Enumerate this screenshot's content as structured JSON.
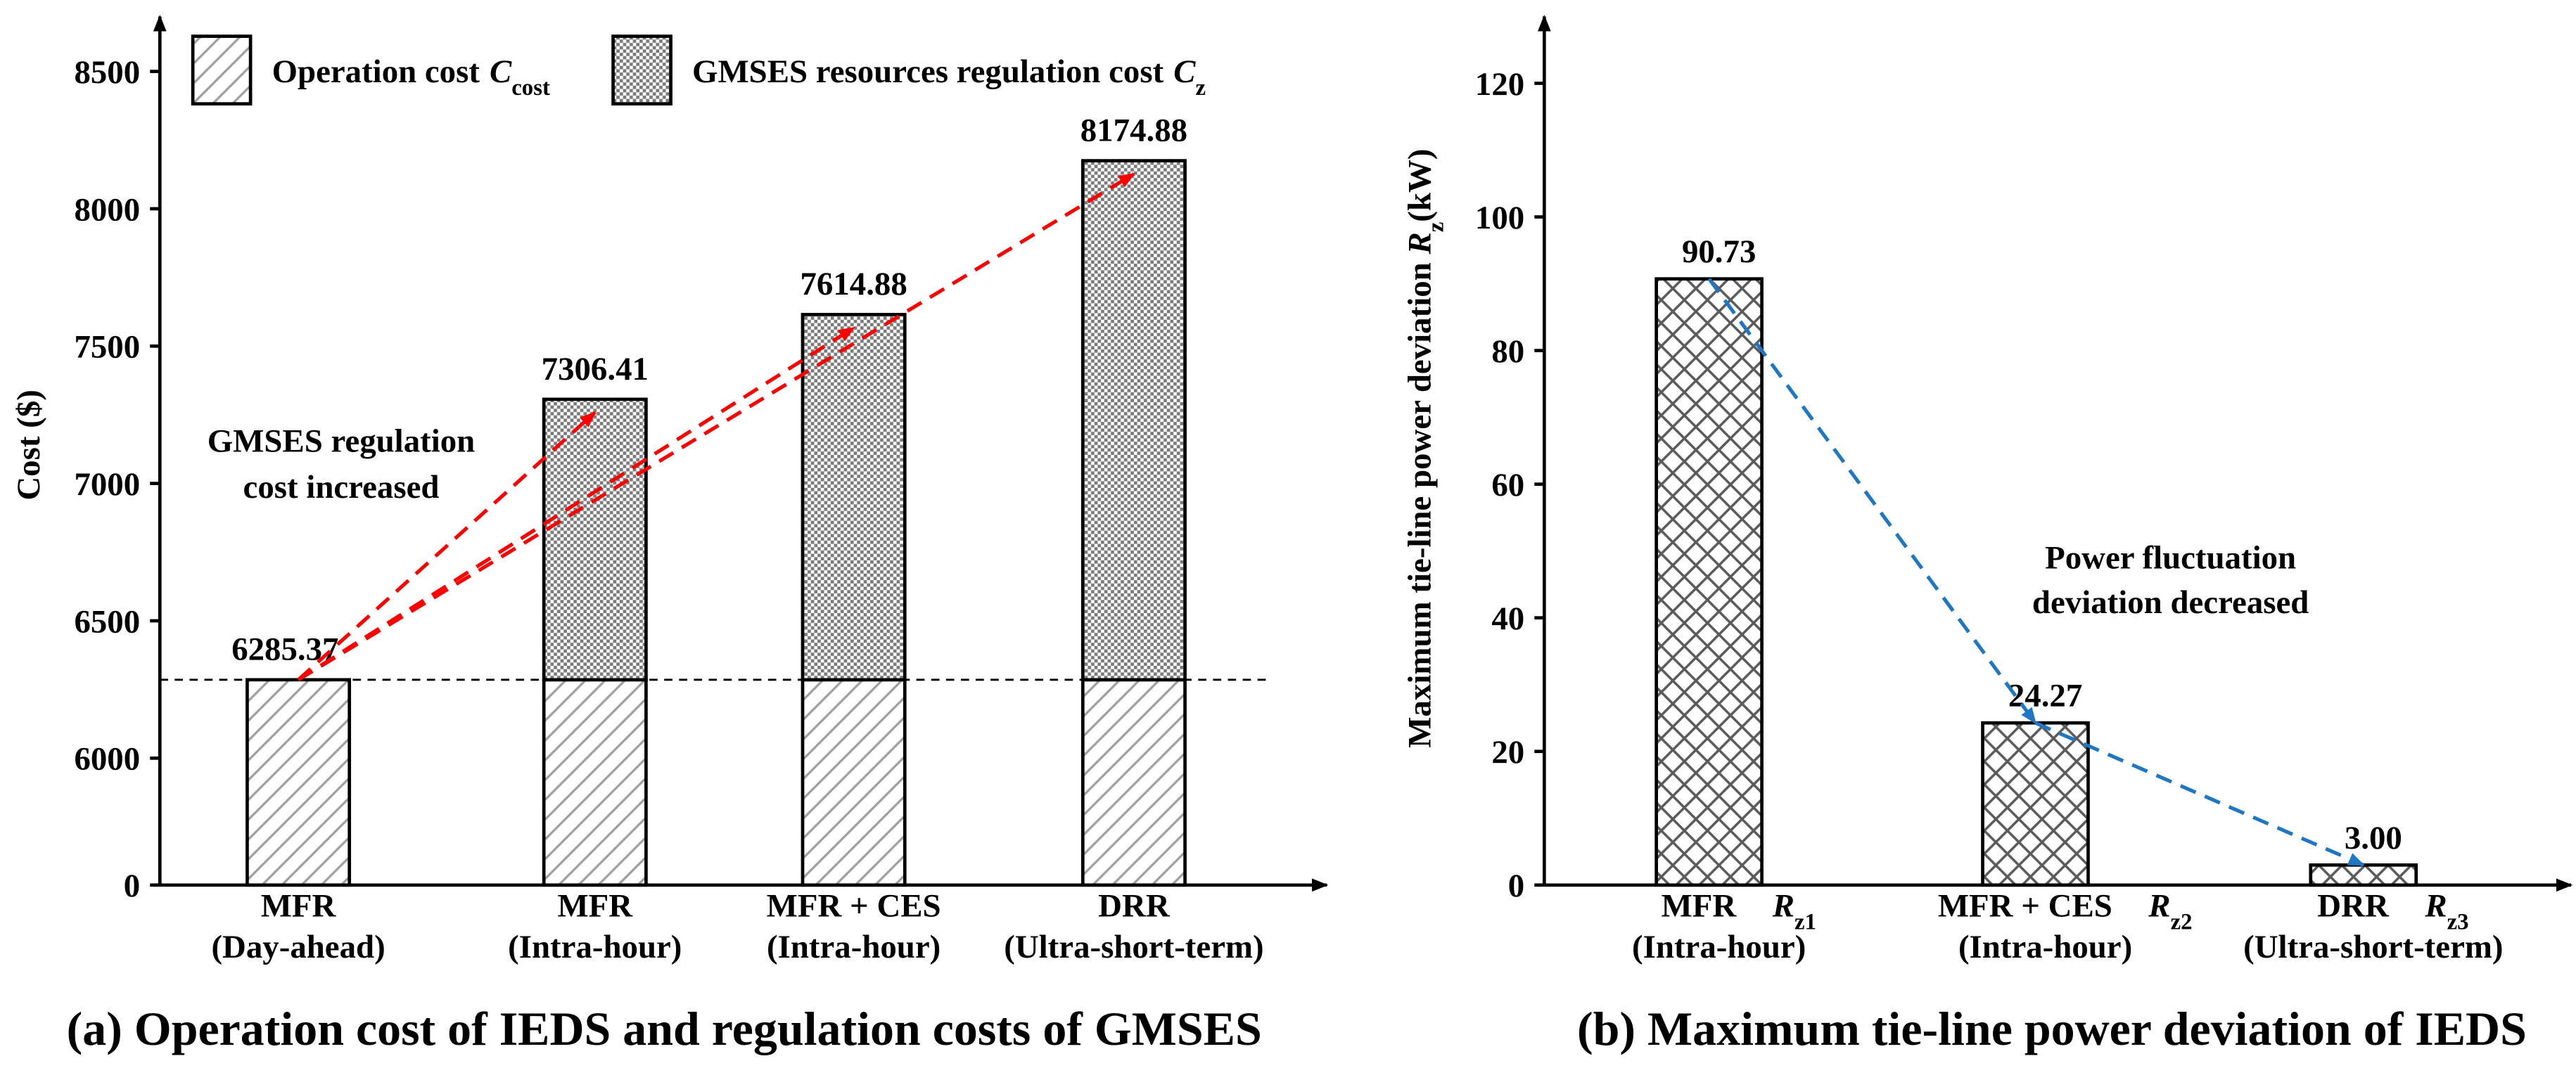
{
  "chart_data": [
    {
      "type": "stacked_bar",
      "title": "(a) Operation cost of IEDS and regulation costs of GMSES",
      "ylabel": "Cost ($)",
      "categories": [
        [
          "MFR",
          "(Day-ahead)"
        ],
        [
          "MFR",
          "(Intra-hour)"
        ],
        [
          "MFR + CES",
          "(Intra-hour)"
        ],
        [
          "DRR",
          "(Ultra-short-term)"
        ]
      ],
      "series": [
        {
          "name": "Operation cost",
          "symbol": "C",
          "subscript": "cost",
          "color": "#a0a0a0",
          "pattern": "hatch",
          "values": [
            6285.37,
            6285.37,
            6285.37,
            6285.37
          ]
        },
        {
          "name": "GMSES resources regulation cost",
          "symbol": "C",
          "subscript": "z",
          "color": "#7a7a7a",
          "pattern": "dots",
          "values": [
            null,
            1021.04,
            1329.51,
            1889.51
          ]
        }
      ],
      "totals": [
        6285.37,
        7306.41,
        7614.88,
        8174.88
      ],
      "ylim": [
        0,
        8700
      ],
      "yticks": [
        0,
        6000,
        6500,
        7000,
        7500,
        8000,
        8500
      ],
      "axis_break": [
        0,
        6000
      ],
      "annotation": [
        "GMSES regulation",
        "cost increased"
      ],
      "annotation_color": "#ff0000",
      "legend": "top"
    },
    {
      "type": "bar",
      "title": "(b) Maximum tie-line power deviation of IEDS",
      "ylabel": [
        "Maximum tie-line power deviation",
        "R",
        "z",
        "(kW)"
      ],
      "categories": [
        [
          "MFR",
          "(Intra-hour)"
        ],
        [
          "MFR + CES",
          "(Intra-hour)"
        ],
        [
          "DRR",
          "(Ultra-short-term)"
        ]
      ],
      "symbols": [
        [
          "R",
          "z1"
        ],
        [
          "R",
          "z2"
        ],
        [
          "R",
          "z3"
        ]
      ],
      "values": [
        90.73,
        24.27,
        3.0
      ],
      "value_labels": [
        "90.73",
        "24.27",
        "3.00"
      ],
      "color": "#5a5a5a",
      "pattern": "crosshatch",
      "ylim": [
        0,
        130
      ],
      "yticks": [
        0,
        20,
        40,
        60,
        80,
        100,
        120
      ],
      "annotation": [
        "Power fluctuation",
        "deviation decreased"
      ],
      "annotation_color": "#1f77c4"
    }
  ]
}
